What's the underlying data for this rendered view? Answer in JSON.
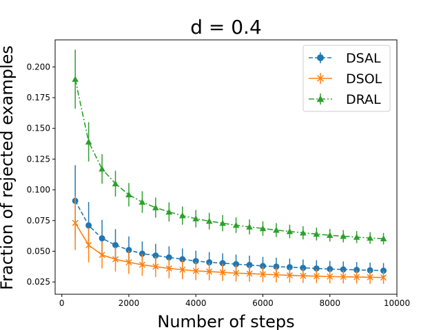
{
  "chart_data": {
    "type": "line",
    "title": "d = 0.4",
    "xlabel": "Number of steps",
    "ylabel": "Fraction of rejected examples",
    "xlim": [
      -200,
      10000
    ],
    "ylim": [
      0.015,
      0.222
    ],
    "xticks": [
      0,
      2000,
      4000,
      6000,
      8000,
      10000
    ],
    "xtick_labels": [
      "0",
      "2000",
      "4000",
      "6000",
      "8000",
      "10000"
    ],
    "yticks": [
      0.025,
      0.05,
      0.075,
      0.1,
      0.125,
      0.15,
      0.175,
      0.2
    ],
    "ytick_labels": [
      "0.025",
      "0.050",
      "0.075",
      "0.100",
      "0.125",
      "0.150",
      "0.175",
      "0.200"
    ],
    "legend_position": "top-right",
    "x": [
      400,
      800,
      1200,
      1600,
      2000,
      2400,
      2800,
      3200,
      3600,
      4000,
      4400,
      4800,
      5200,
      5600,
      6000,
      6400,
      6800,
      7200,
      7600,
      8000,
      8400,
      8800,
      9200,
      9600
    ],
    "series": [
      {
        "name": "DSAL",
        "color": "#1f77b4",
        "marker": "circle",
        "linestyle": "dashed",
        "values": [
          0.091,
          0.071,
          0.0605,
          0.055,
          0.051,
          0.048,
          0.0465,
          0.045,
          0.0435,
          0.042,
          0.041,
          0.0403,
          0.0395,
          0.0388,
          0.038,
          0.0375,
          0.037,
          0.0365,
          0.036,
          0.0355,
          0.0352,
          0.0348,
          0.0345,
          0.0342
        ],
        "errors": [
          0.029,
          0.019,
          0.015,
          0.013,
          0.011,
          0.01,
          0.0095,
          0.009,
          0.0088,
          0.0085,
          0.0083,
          0.008,
          0.0078,
          0.0076,
          0.0074,
          0.0072,
          0.007,
          0.0068,
          0.0067,
          0.0066,
          0.0065,
          0.0064,
          0.0063,
          0.0062
        ]
      },
      {
        "name": "DSOL",
        "color": "#ff7f0e",
        "marker": "x",
        "linestyle": "solid",
        "values": [
          0.073,
          0.055,
          0.047,
          0.0435,
          0.041,
          0.039,
          0.0375,
          0.036,
          0.035,
          0.034,
          0.0335,
          0.0328,
          0.0322,
          0.0318,
          0.0313,
          0.0308,
          0.0304,
          0.03,
          0.0297,
          0.0294,
          0.0292,
          0.029,
          0.0288,
          0.0286
        ],
        "errors": [
          0.022,
          0.014,
          0.011,
          0.01,
          0.0095,
          0.009,
          0.0085,
          0.008,
          0.0078,
          0.0075,
          0.0072,
          0.007,
          0.0068,
          0.0066,
          0.0064,
          0.0062,
          0.006,
          0.0058,
          0.0056,
          0.0055,
          0.0054,
          0.0053,
          0.0052,
          0.0051
        ]
      },
      {
        "name": "DRAL",
        "color": "#2ca02c",
        "marker": "triangle",
        "linestyle": "dashdot",
        "values": [
          0.19,
          0.139,
          0.117,
          0.105,
          0.096,
          0.09,
          0.0855,
          0.082,
          0.079,
          0.0765,
          0.0745,
          0.0728,
          0.0712,
          0.0698,
          0.0685,
          0.0672,
          0.0661,
          0.065,
          0.064,
          0.063,
          0.0622,
          0.0615,
          0.0608,
          0.0602
        ],
        "errors": [
          0.024,
          0.016,
          0.012,
          0.0105,
          0.0095,
          0.0088,
          0.0082,
          0.0078,
          0.0074,
          0.0071,
          0.0068,
          0.0066,
          0.0063,
          0.0061,
          0.0059,
          0.0057,
          0.0055,
          0.0054,
          0.0052,
          0.0051,
          0.005,
          0.0049,
          0.0048,
          0.0047
        ]
      }
    ]
  }
}
